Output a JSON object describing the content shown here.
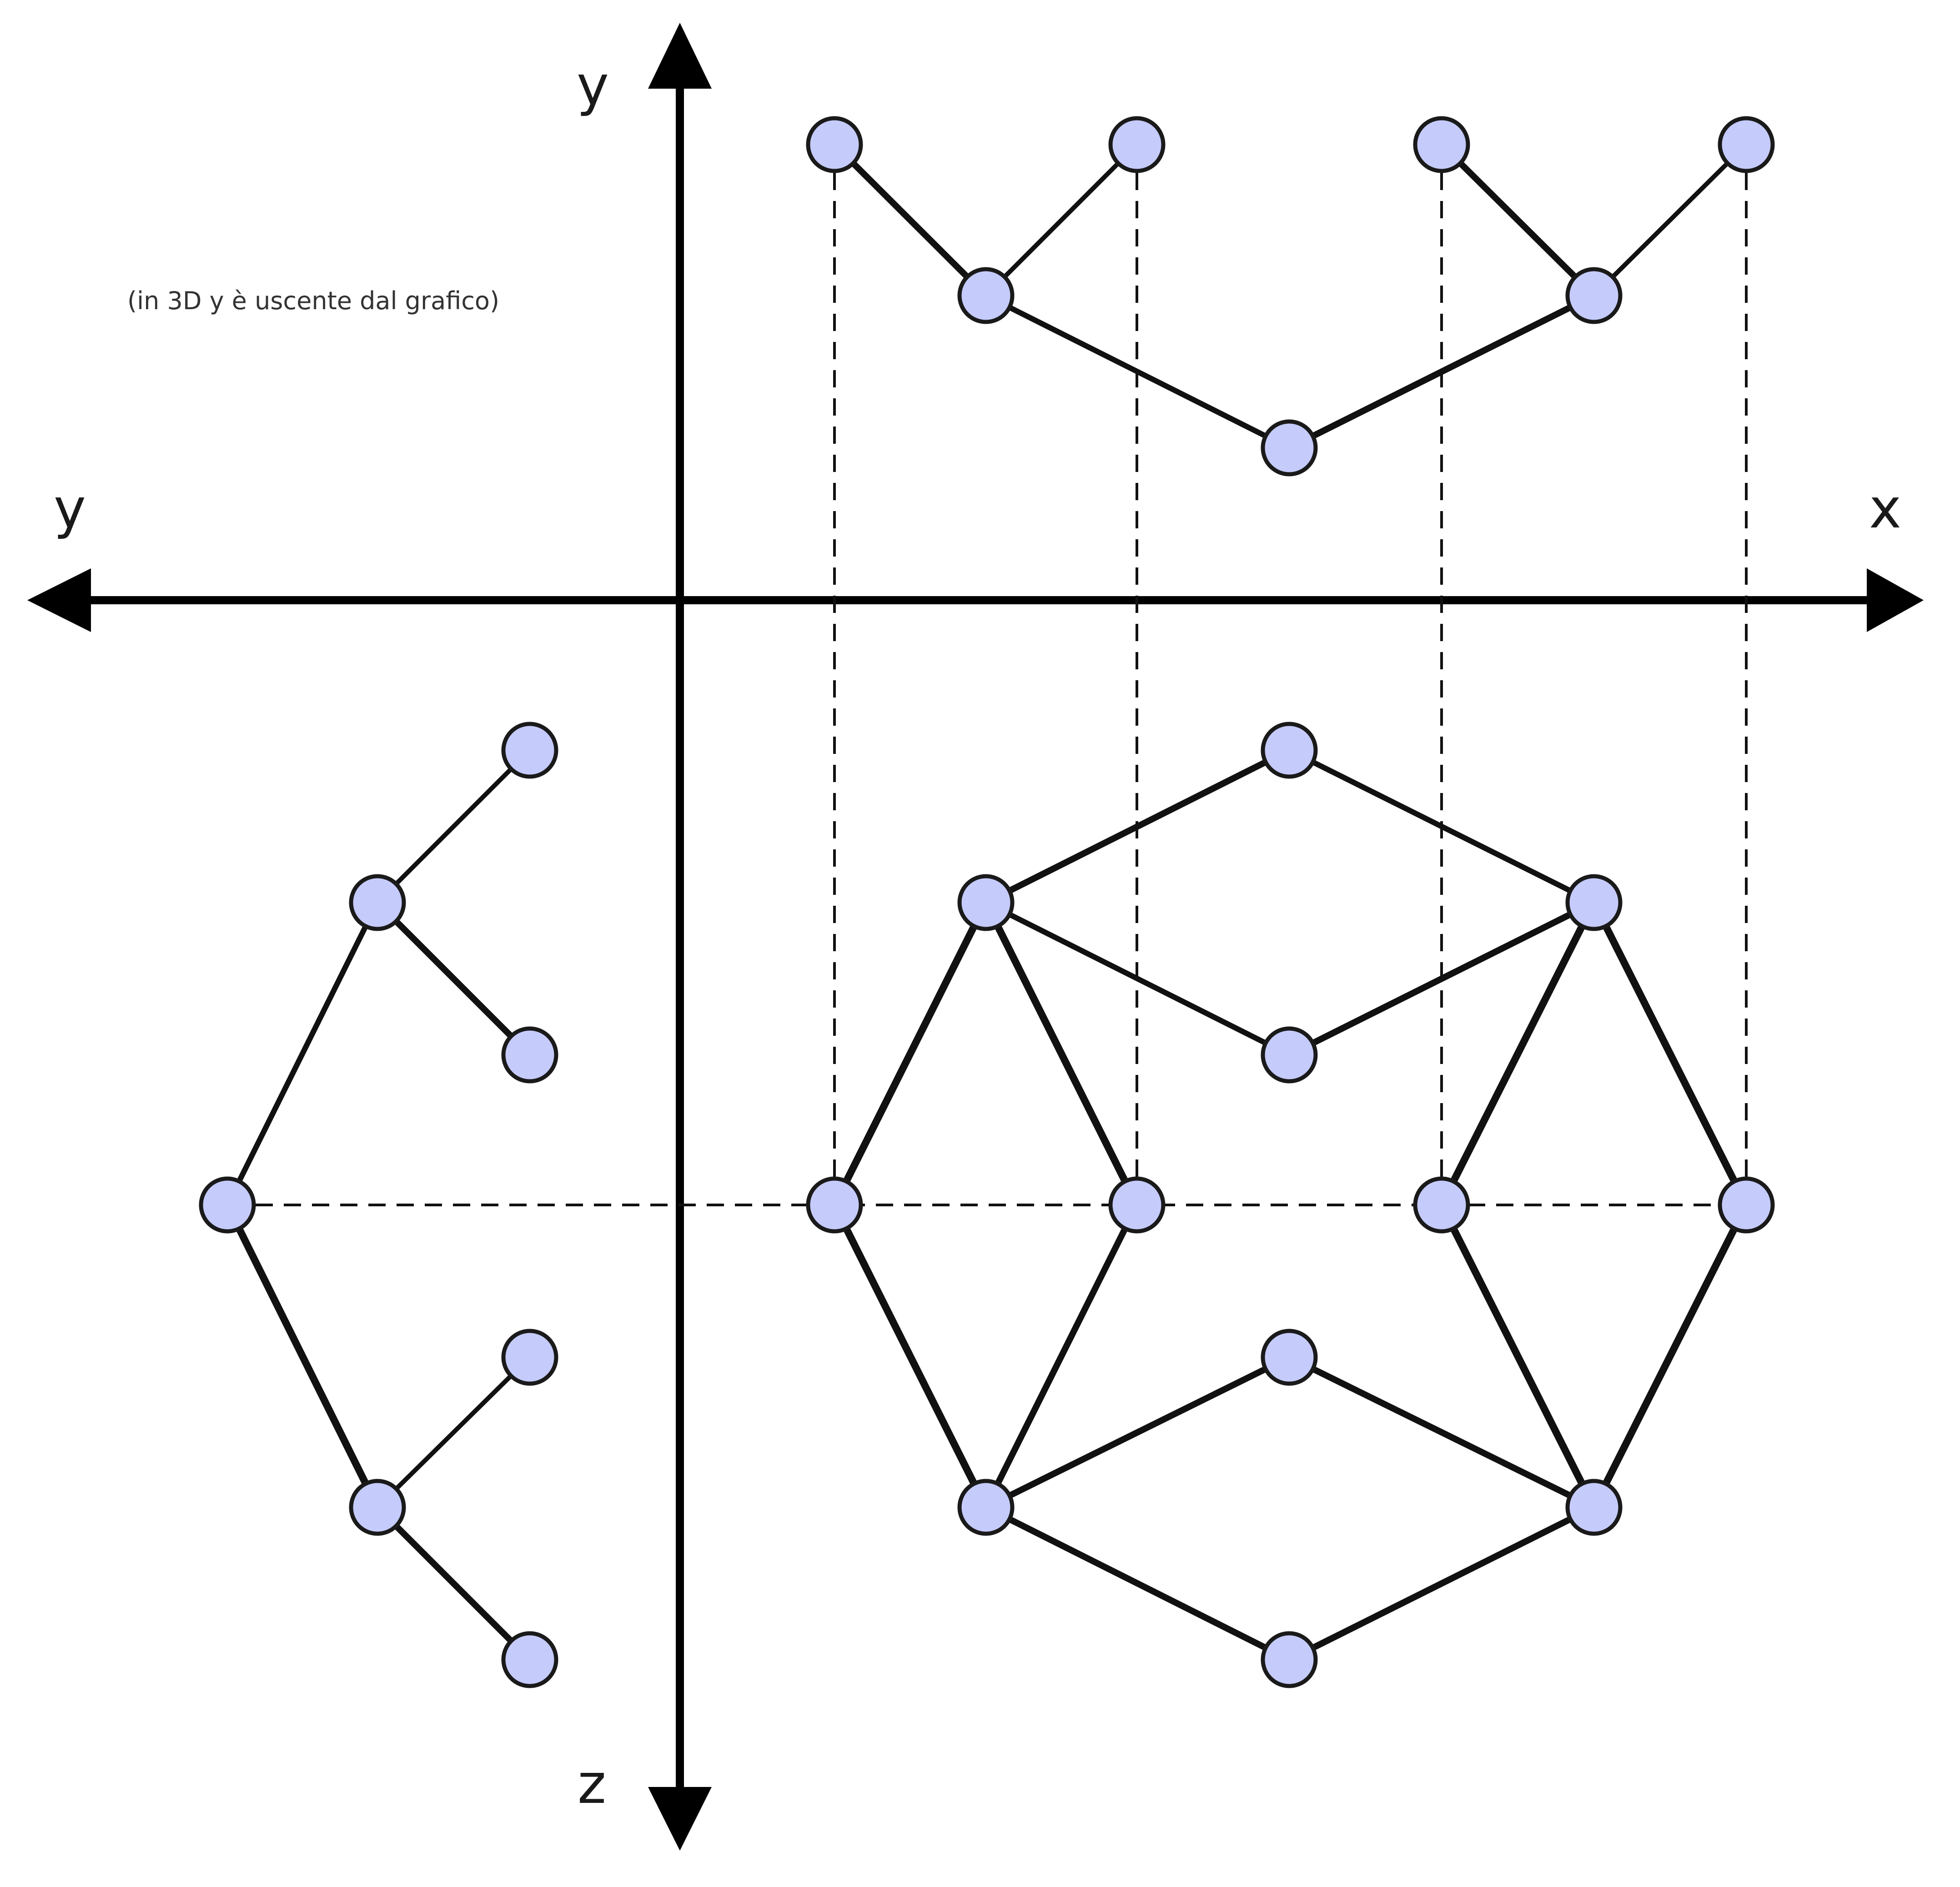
{
  "labels": {
    "y_top": "y",
    "y_left": "y",
    "x": "x",
    "z": "z",
    "note": "(in 3D y è uscente dal grafico)"
  },
  "colors": {
    "node_fill": "#c5cbfb",
    "node_stroke": "#1a1a1a",
    "edge": "#111111",
    "axis": "#000000"
  }
}
